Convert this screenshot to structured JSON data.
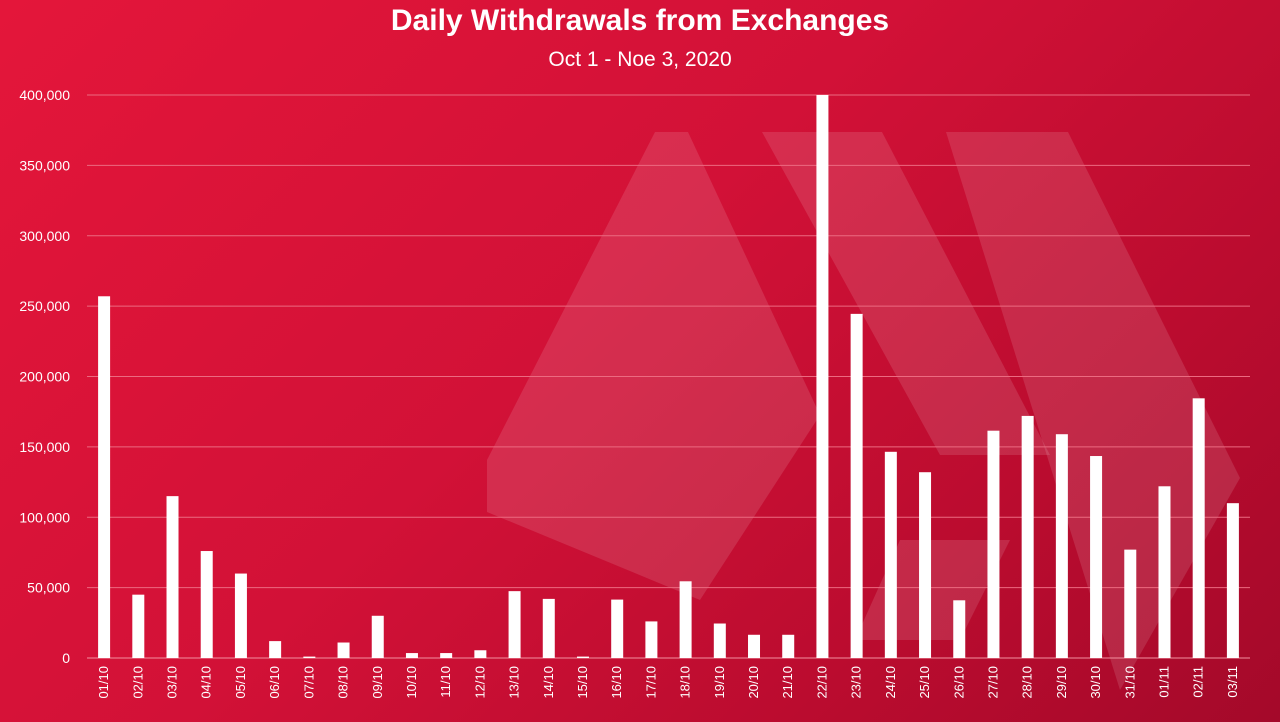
{
  "chart_data": {
    "type": "bar",
    "title": "Daily Withdrawals from Exchanges",
    "subtitle": "Oct 1 - Noe 3, 2020",
    "xlabel": "",
    "ylabel": "",
    "ylim": [
      0,
      400000
    ],
    "yticks": [
      0,
      50000,
      100000,
      150000,
      200000,
      250000,
      300000,
      350000,
      400000
    ],
    "ytick_labels": [
      "0",
      "50,000",
      "100,000",
      "150,000",
      "200,000",
      "250,000",
      "300,000",
      "350,000",
      "400,000"
    ],
    "grid": true,
    "legend": "none",
    "bar_color": "#ffffff",
    "categories": [
      "01/10",
      "02/10",
      "03/10",
      "04/10",
      "05/10",
      "06/10",
      "07/10",
      "08/10",
      "09/10",
      "10/10",
      "11/10",
      "12/10",
      "13/10",
      "14/10",
      "15/10",
      "16/10",
      "17/10",
      "18/10",
      "19/10",
      "20/10",
      "21/10",
      "22/10",
      "23/10",
      "24/10",
      "25/10",
      "26/10",
      "27/10",
      "28/10",
      "29/10",
      "30/10",
      "31/10",
      "01/11",
      "02/11",
      "03/11"
    ],
    "values": [
      257000,
      45000,
      115000,
      76000,
      60000,
      12000,
      1000,
      11000,
      30000,
      3500,
      3500,
      5500,
      47500,
      42000,
      1000,
      41500,
      26000,
      54500,
      24500,
      16500,
      16500,
      400000,
      244500,
      146500,
      132000,
      41000,
      161500,
      172000,
      159000,
      143500,
      77000,
      122000,
      184500,
      110000
    ]
  },
  "colors": {
    "background_start": "#e4163a",
    "background_end": "#a4092a",
    "bar": "#ffffff",
    "gridline": "#ec6a80",
    "text": "#ffffff"
  },
  "watermark_icon": "hive-logo-icon"
}
